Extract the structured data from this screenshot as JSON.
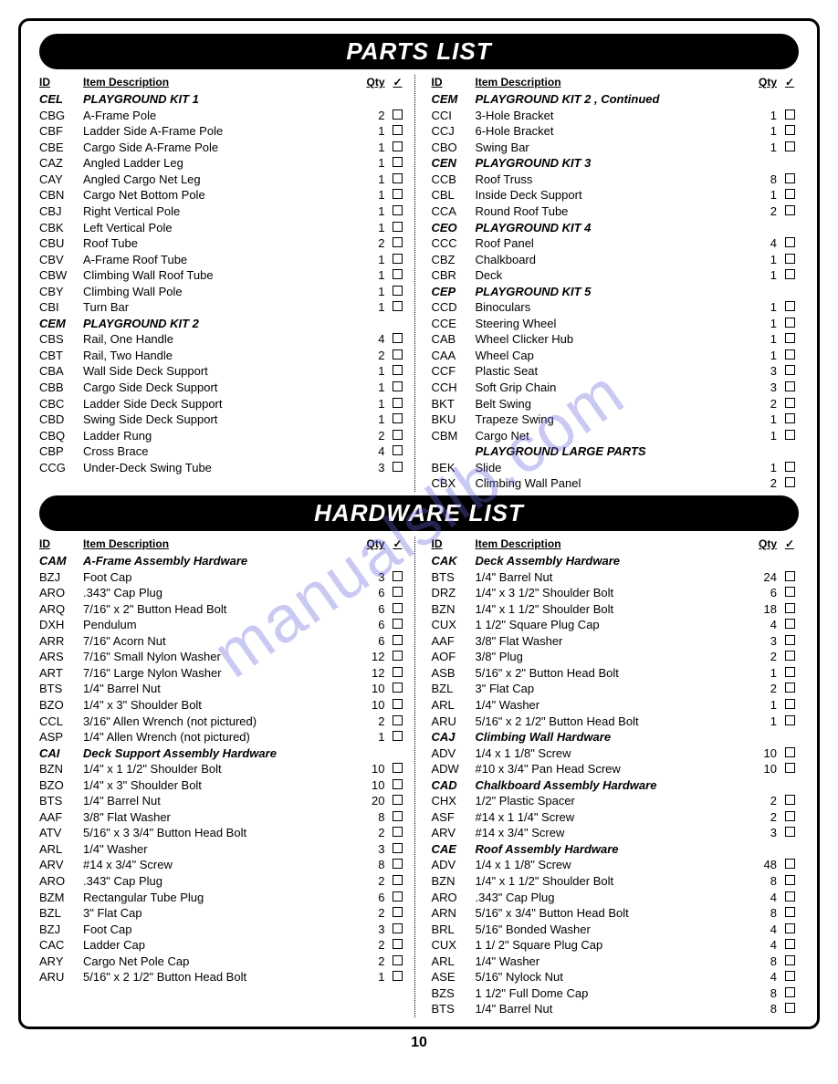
{
  "page_number": "10",
  "watermark_text": "manualslib.com",
  "sections": {
    "parts": {
      "title": "PARTS LIST",
      "headers": {
        "id": "ID",
        "desc": "Item Description",
        "qty": "Qty",
        "chk": "✓"
      },
      "left": [
        {
          "type": "group",
          "id": "CEL",
          "desc": "PLAYGROUND KIT 1"
        },
        {
          "type": "item",
          "id": "CBG",
          "desc": "A-Frame Pole",
          "qty": "2"
        },
        {
          "type": "item",
          "id": "CBF",
          "desc": "Ladder Side A-Frame Pole",
          "qty": "1"
        },
        {
          "type": "item",
          "id": "CBE",
          "desc": "Cargo Side  A-Frame Pole",
          "qty": "1"
        },
        {
          "type": "item",
          "id": "CAZ",
          "desc": "Angled Ladder Leg",
          "qty": "1"
        },
        {
          "type": "item",
          "id": "CAY",
          "desc": "Angled Cargo Net Leg",
          "qty": "1"
        },
        {
          "type": "item",
          "id": "CBN",
          "desc": "Cargo Net Bottom Pole",
          "qty": "1"
        },
        {
          "type": "item",
          "id": "CBJ",
          "desc": "Right Vertical Pole",
          "qty": "1"
        },
        {
          "type": "item",
          "id": "CBK",
          "desc": "Left Vertical Pole",
          "qty": "1"
        },
        {
          "type": "item",
          "id": "CBU",
          "desc": "Roof Tube",
          "qty": "2"
        },
        {
          "type": "item",
          "id": "CBV",
          "desc": "A-Frame Roof Tube",
          "qty": "1"
        },
        {
          "type": "item",
          "id": "CBW",
          "desc": "Climbing Wall Roof Tube",
          "qty": "1"
        },
        {
          "type": "item",
          "id": "CBY",
          "desc": "Climbing Wall Pole",
          "qty": "1"
        },
        {
          "type": "item",
          "id": "CBI",
          "desc": "Turn Bar",
          "qty": "1"
        },
        {
          "type": "group",
          "id": "CEM",
          "desc": "PLAYGROUND KIT 2"
        },
        {
          "type": "item",
          "id": "CBS",
          "desc": "Rail, One Handle",
          "qty": "4"
        },
        {
          "type": "item",
          "id": "CBT",
          "desc": "Rail, Two Handle",
          "qty": "2"
        },
        {
          "type": "item",
          "id": "CBA",
          "desc": "Wall Side Deck Support",
          "qty": "1"
        },
        {
          "type": "item",
          "id": "CBB",
          "desc": "Cargo Side Deck Support",
          "qty": "1"
        },
        {
          "type": "item",
          "id": "CBC",
          "desc": "Ladder Side Deck Support",
          "qty": "1"
        },
        {
          "type": "item",
          "id": "CBD",
          "desc": "Swing Side Deck Support",
          "qty": "1"
        },
        {
          "type": "item",
          "id": "CBQ",
          "desc": "Ladder Rung",
          "qty": "2"
        },
        {
          "type": "item",
          "id": "CBP",
          "desc": "Cross Brace",
          "qty": "4"
        },
        {
          "type": "item",
          "id": "CCG",
          "desc": "Under-Deck Swing Tube",
          "qty": "3"
        }
      ],
      "right": [
        {
          "type": "group",
          "id": "CEM",
          "desc": "PLAYGROUND KIT 2 , Continued"
        },
        {
          "type": "item",
          "id": "CCI",
          "desc": "3-Hole Bracket",
          "qty": "1"
        },
        {
          "type": "item",
          "id": "CCJ",
          "desc": "6-Hole Bracket",
          "qty": "1"
        },
        {
          "type": "item",
          "id": "CBO",
          "desc": "Swing Bar",
          "qty": "1"
        },
        {
          "type": "group",
          "id": "CEN",
          "desc": "PLAYGROUND KIT 3"
        },
        {
          "type": "item",
          "id": "CCB",
          "desc": "Roof Truss",
          "qty": "8"
        },
        {
          "type": "item",
          "id": "CBL",
          "desc": "Inside Deck Support",
          "qty": "1"
        },
        {
          "type": "item",
          "id": "CCA",
          "desc": "Round Roof Tube",
          "qty": "2"
        },
        {
          "type": "group",
          "id": "CEO",
          "desc": "PLAYGROUND KIT 4"
        },
        {
          "type": "item",
          "id": "CCC",
          "desc": "Roof Panel",
          "qty": "4"
        },
        {
          "type": "item",
          "id": "CBZ",
          "desc": "Chalkboard",
          "qty": "1"
        },
        {
          "type": "item",
          "id": "CBR",
          "desc": "Deck",
          "qty": "1"
        },
        {
          "type": "group",
          "id": "CEP",
          "desc": "PLAYGROUND KIT 5"
        },
        {
          "type": "item",
          "id": "CCD",
          "desc": "Binoculars",
          "qty": "1"
        },
        {
          "type": "item",
          "id": "CCE",
          "desc": "Steering Wheel",
          "qty": "1"
        },
        {
          "type": "item",
          "id": "CAB",
          "desc": "Wheel Clicker Hub",
          "qty": "1"
        },
        {
          "type": "item",
          "id": "CAA",
          "desc": "Wheel Cap",
          "qty": "1"
        },
        {
          "type": "item",
          "id": "CCF",
          "desc": "Plastic Seat",
          "qty": "3"
        },
        {
          "type": "item",
          "id": "CCH",
          "desc": "Soft Grip Chain",
          "qty": "3"
        },
        {
          "type": "item",
          "id": "BKT",
          "desc": "Belt Swing",
          "qty": "2"
        },
        {
          "type": "item",
          "id": "BKU",
          "desc": "Trapeze Swing",
          "qty": "1"
        },
        {
          "type": "item",
          "id": "CBM",
          "desc": "Cargo Net",
          "qty": "1"
        },
        {
          "type": "group",
          "id": "",
          "desc": "PLAYGROUND LARGE PARTS"
        },
        {
          "type": "item",
          "id": "BEK",
          "desc": "Slide",
          "qty": "1"
        },
        {
          "type": "item",
          "id": "CBX",
          "desc": "Climbing Wall Panel",
          "qty": "2"
        }
      ]
    },
    "hardware": {
      "title": "HARDWARE LIST",
      "headers": {
        "id": "ID",
        "desc": "Item Description",
        "qty": "Qty",
        "chk": "✓"
      },
      "left": [
        {
          "type": "group",
          "id": "CAM",
          "desc": "A-Frame Assembly Hardware"
        },
        {
          "type": "item",
          "id": "BZJ",
          "desc": "Foot Cap",
          "qty": "3"
        },
        {
          "type": "item",
          "id": "ARO",
          "desc": ".343\" Cap Plug",
          "qty": "6"
        },
        {
          "type": "item",
          "id": "ARQ",
          "desc": "7/16\" x 2\" Button Head Bolt",
          "qty": "6"
        },
        {
          "type": "item",
          "id": "DXH",
          "desc": "Pendulum",
          "qty": "6"
        },
        {
          "type": "item",
          "id": "ARR",
          "desc": "7/16\" Acorn Nut",
          "qty": "6"
        },
        {
          "type": "item",
          "id": "ARS",
          "desc": "7/16\" Small Nylon Washer",
          "qty": "12"
        },
        {
          "type": "item",
          "id": "ART",
          "desc": "7/16\" Large Nylon Washer",
          "qty": "12"
        },
        {
          "type": "item",
          "id": "BTS",
          "desc": "1/4\" Barrel Nut",
          "qty": "10"
        },
        {
          "type": "item",
          "id": "BZO",
          "desc": "1/4\" x 3\" Shoulder Bolt",
          "qty": "10"
        },
        {
          "type": "item",
          "id": "CCL",
          "desc": "3/16\" Allen Wrench (not pictured)",
          "qty": "2"
        },
        {
          "type": "item",
          "id": "ASP",
          "desc": "1/4\" Allen Wrench (not pictured)",
          "qty": "1"
        },
        {
          "type": "group",
          "id": "CAI",
          "desc": "Deck Support Assembly Hardware"
        },
        {
          "type": "item",
          "id": "BZN",
          "desc": "1/4\" x 1 1/2\" Shoulder Bolt",
          "qty": "10"
        },
        {
          "type": "item",
          "id": "BZO",
          "desc": "1/4\" x 3\" Shoulder Bolt",
          "qty": "10"
        },
        {
          "type": "item",
          "id": "BTS",
          "desc": "1/4\" Barrel Nut",
          "qty": "20"
        },
        {
          "type": "item",
          "id": "AAF",
          "desc": "3/8\" Flat Washer",
          "qty": "8"
        },
        {
          "type": "item",
          "id": "ATV",
          "desc": "5/16\" x 3 3/4\" Button Head Bolt",
          "qty": "2"
        },
        {
          "type": "item",
          "id": "ARL",
          "desc": "1/4\" Washer",
          "qty": "3"
        },
        {
          "type": "item",
          "id": "ARV",
          "desc": "#14 x 3/4\" Screw",
          "qty": "8"
        },
        {
          "type": "item",
          "id": "ARO",
          "desc": ".343\" Cap Plug",
          "qty": "2"
        },
        {
          "type": "item",
          "id": "BZM",
          "desc": "Rectangular Tube Plug",
          "qty": "6"
        },
        {
          "type": "item",
          "id": "BZL",
          "desc": "3\" Flat Cap",
          "qty": "2"
        },
        {
          "type": "item",
          "id": "BZJ",
          "desc": "Foot Cap",
          "qty": "3"
        },
        {
          "type": "item",
          "id": "CAC",
          "desc": "Ladder Cap",
          "qty": "2"
        },
        {
          "type": "item",
          "id": "ARY",
          "desc": "Cargo Net Pole Cap",
          "qty": "2"
        },
        {
          "type": "item",
          "id": "ARU",
          "desc": "5/16\" x 2 1/2\" Button Head Bolt",
          "qty": "1"
        }
      ],
      "right": [
        {
          "type": "group",
          "id": "CAK",
          "desc": "Deck Assembly Hardware"
        },
        {
          "type": "item",
          "id": "BTS",
          "desc": "1/4\" Barrel Nut",
          "qty": "24"
        },
        {
          "type": "item",
          "id": "DRZ",
          "desc": "1/4\" x 3 1/2\" Shoulder Bolt",
          "qty": "6"
        },
        {
          "type": "item",
          "id": "BZN",
          "desc": "1/4\" x 1 1/2\" Shoulder Bolt",
          "qty": "18"
        },
        {
          "type": "item",
          "id": "CUX",
          "desc": "1 1/2\" Square Plug Cap",
          "qty": "4"
        },
        {
          "type": "item",
          "id": "AAF",
          "desc": "3/8\" Flat Washer",
          "qty": "3"
        },
        {
          "type": "item",
          "id": "AOF",
          "desc": "3/8\" Plug",
          "qty": "2"
        },
        {
          "type": "item",
          "id": "ASB",
          "desc": "5/16\" x 2\" Button Head Bolt",
          "qty": "1"
        },
        {
          "type": "item",
          "id": "BZL",
          "desc": "3\" Flat Cap",
          "qty": "2"
        },
        {
          "type": "item",
          "id": "ARL",
          "desc": "1/4\" Washer",
          "qty": "1"
        },
        {
          "type": "item",
          "id": "ARU",
          "desc": "5/16\" x 2 1/2\" Button Head Bolt",
          "qty": "1"
        },
        {
          "type": "group",
          "id": "CAJ",
          "desc": "Climbing Wall Hardware"
        },
        {
          "type": "item",
          "id": "ADV",
          "desc": "1/4 x 1 1/8\" Screw",
          "qty": "10"
        },
        {
          "type": "item",
          "id": "ADW",
          "desc": "#10 x 3/4\" Pan Head Screw",
          "qty": "10"
        },
        {
          "type": "group",
          "id": "CAD",
          "desc": "Chalkboard Assembly Hardware"
        },
        {
          "type": "item",
          "id": "CHX",
          "desc": "1/2\" Plastic Spacer",
          "qty": "2"
        },
        {
          "type": "item",
          "id": "ASF",
          "desc": "#14 x 1 1/4\" Screw",
          "qty": "2"
        },
        {
          "type": "item",
          "id": "ARV",
          "desc": "#14 x 3/4\" Screw",
          "qty": "3"
        },
        {
          "type": "group",
          "id": "CAE",
          "desc": "Roof Assembly Hardware"
        },
        {
          "type": "item",
          "id": "ADV",
          "desc": "1/4 x 1 1/8\" Screw",
          "qty": "48"
        },
        {
          "type": "item",
          "id": "BZN",
          "desc": "1/4\" x 1 1/2\" Shoulder Bolt",
          "qty": "8"
        },
        {
          "type": "item",
          "id": "ARO",
          "desc": ".343\" Cap Plug",
          "qty": "4"
        },
        {
          "type": "item",
          "id": "ARN",
          "desc": "5/16\" x 3/4\" Button Head Bolt",
          "qty": "8"
        },
        {
          "type": "item",
          "id": "BRL",
          "desc": "5/16\" Bonded Washer",
          "qty": "4"
        },
        {
          "type": "item",
          "id": "CUX",
          "desc": "1 1/ 2\" Square Plug Cap",
          "qty": "4"
        },
        {
          "type": "item",
          "id": "ARL",
          "desc": "1/4\" Washer",
          "qty": "8"
        },
        {
          "type": "item",
          "id": "ASE",
          "desc": "5/16\" Nylock Nut",
          "qty": "4"
        },
        {
          "type": "item",
          "id": "BZS",
          "desc": "1 1/2\" Full Dome Cap",
          "qty": "8"
        },
        {
          "type": "item",
          "id": "BTS",
          "desc": "1/4\" Barrel Nut",
          "qty": "8"
        }
      ]
    }
  }
}
